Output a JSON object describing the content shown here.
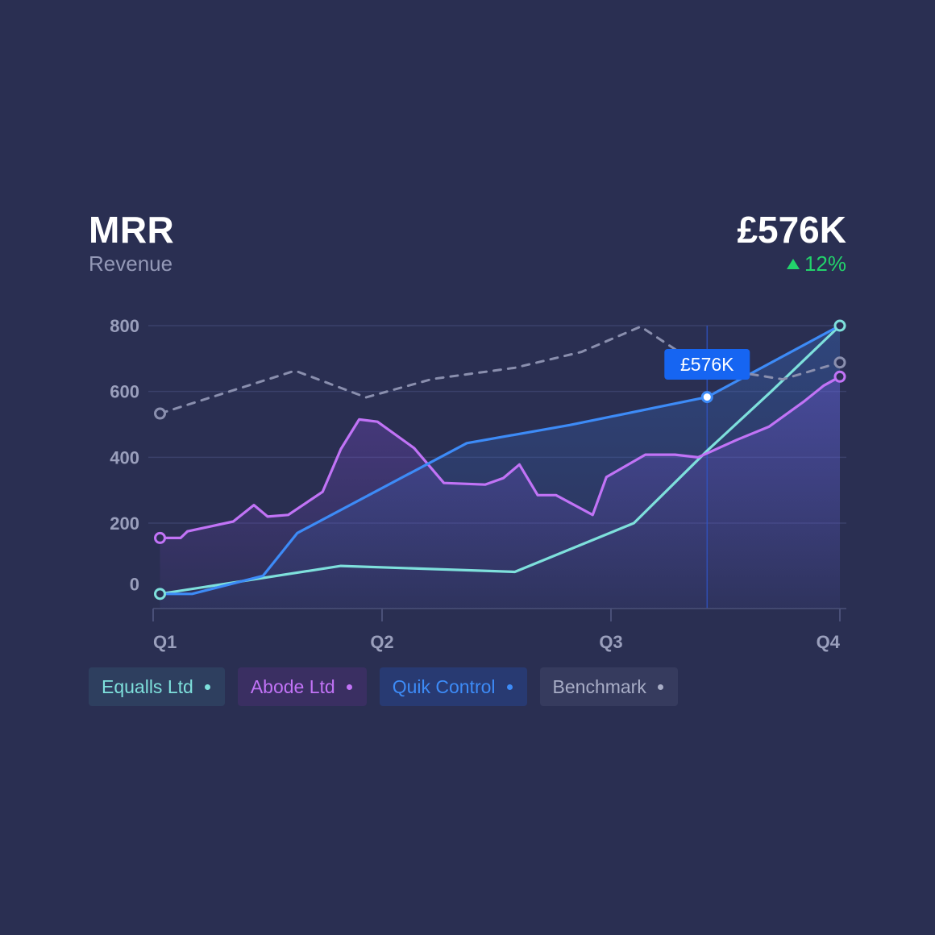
{
  "header": {
    "title": "MRR",
    "subtitle": "Revenue",
    "kpi_value": "£576K",
    "kpi_change": "12%"
  },
  "tooltip": {
    "label": "£576K"
  },
  "legend": {
    "items": [
      {
        "label": "Equalls Ltd",
        "color": "#7ee0dc"
      },
      {
        "label": "Abode Ltd",
        "color": "#c173f6"
      },
      {
        "label": "Quik Control",
        "color": "#3d8bf7"
      },
      {
        "label": "Benchmark",
        "color": "#a8adc6"
      }
    ]
  },
  "chart_data": {
    "type": "line",
    "title": "MRR",
    "subtitle": "Revenue",
    "x_ticks": [
      {
        "label": "Q1",
        "x": 0
      },
      {
        "label": "Q2",
        "x": 1
      },
      {
        "label": "Q3",
        "x": 2
      },
      {
        "label": "Q4",
        "x": 3
      }
    ],
    "y_ticks": [
      0,
      200,
      400,
      600,
      800
    ],
    "xlim": [
      0,
      3
    ],
    "ylim": [
      -35,
      800
    ],
    "grid": true,
    "cursor_x": 2.42,
    "series": [
      {
        "name": "Equalls Ltd",
        "color": "#7ee0dc",
        "dashed": false,
        "area": false,
        "points": [
          [
            0.03,
            -15
          ],
          [
            0.82,
            70
          ],
          [
            1.58,
            52
          ],
          [
            2.1,
            200
          ],
          [
            2.42,
            420
          ],
          [
            2.7,
            600
          ],
          [
            3.0,
            800
          ]
        ]
      },
      {
        "name": "Abode Ltd",
        "color": "#c173f6",
        "dashed": false,
        "area": true,
        "points": [
          [
            0.03,
            155
          ],
          [
            0.12,
            155
          ],
          [
            0.15,
            175
          ],
          [
            0.35,
            205
          ],
          [
            0.44,
            255
          ],
          [
            0.5,
            220
          ],
          [
            0.59,
            225
          ],
          [
            0.74,
            295
          ],
          [
            0.82,
            425
          ],
          [
            0.9,
            515
          ],
          [
            0.98,
            508
          ],
          [
            1.14,
            428
          ],
          [
            1.27,
            322
          ],
          [
            1.45,
            317
          ],
          [
            1.53,
            337
          ],
          [
            1.6,
            378
          ],
          [
            1.68,
            285
          ],
          [
            1.76,
            285
          ],
          [
            1.92,
            225
          ],
          [
            1.98,
            340
          ],
          [
            2.15,
            408
          ],
          [
            2.28,
            408
          ],
          [
            2.38,
            400
          ],
          [
            2.55,
            453
          ],
          [
            2.69,
            493
          ],
          [
            2.84,
            568
          ],
          [
            2.93,
            618
          ],
          [
            3.0,
            645
          ]
        ]
      },
      {
        "name": "Quik Control",
        "color": "#3d8bf7",
        "dashed": false,
        "area": true,
        "points": [
          [
            0.03,
            -15
          ],
          [
            0.17,
            -15
          ],
          [
            0.48,
            40
          ],
          [
            0.63,
            170
          ],
          [
            1.37,
            443
          ],
          [
            1.82,
            498
          ],
          [
            2.42,
            583
          ],
          [
            3.0,
            800
          ]
        ]
      },
      {
        "name": "Benchmark",
        "color": "#8a8fae",
        "dashed": true,
        "area": false,
        "points": [
          [
            0.03,
            533
          ],
          [
            0.62,
            663
          ],
          [
            0.93,
            582
          ],
          [
            1.22,
            638
          ],
          [
            1.58,
            672
          ],
          [
            1.87,
            720
          ],
          [
            2.13,
            797
          ],
          [
            2.32,
            710
          ],
          [
            2.5,
            665
          ],
          [
            2.75,
            637
          ],
          [
            3.0,
            688
          ]
        ]
      }
    ]
  }
}
